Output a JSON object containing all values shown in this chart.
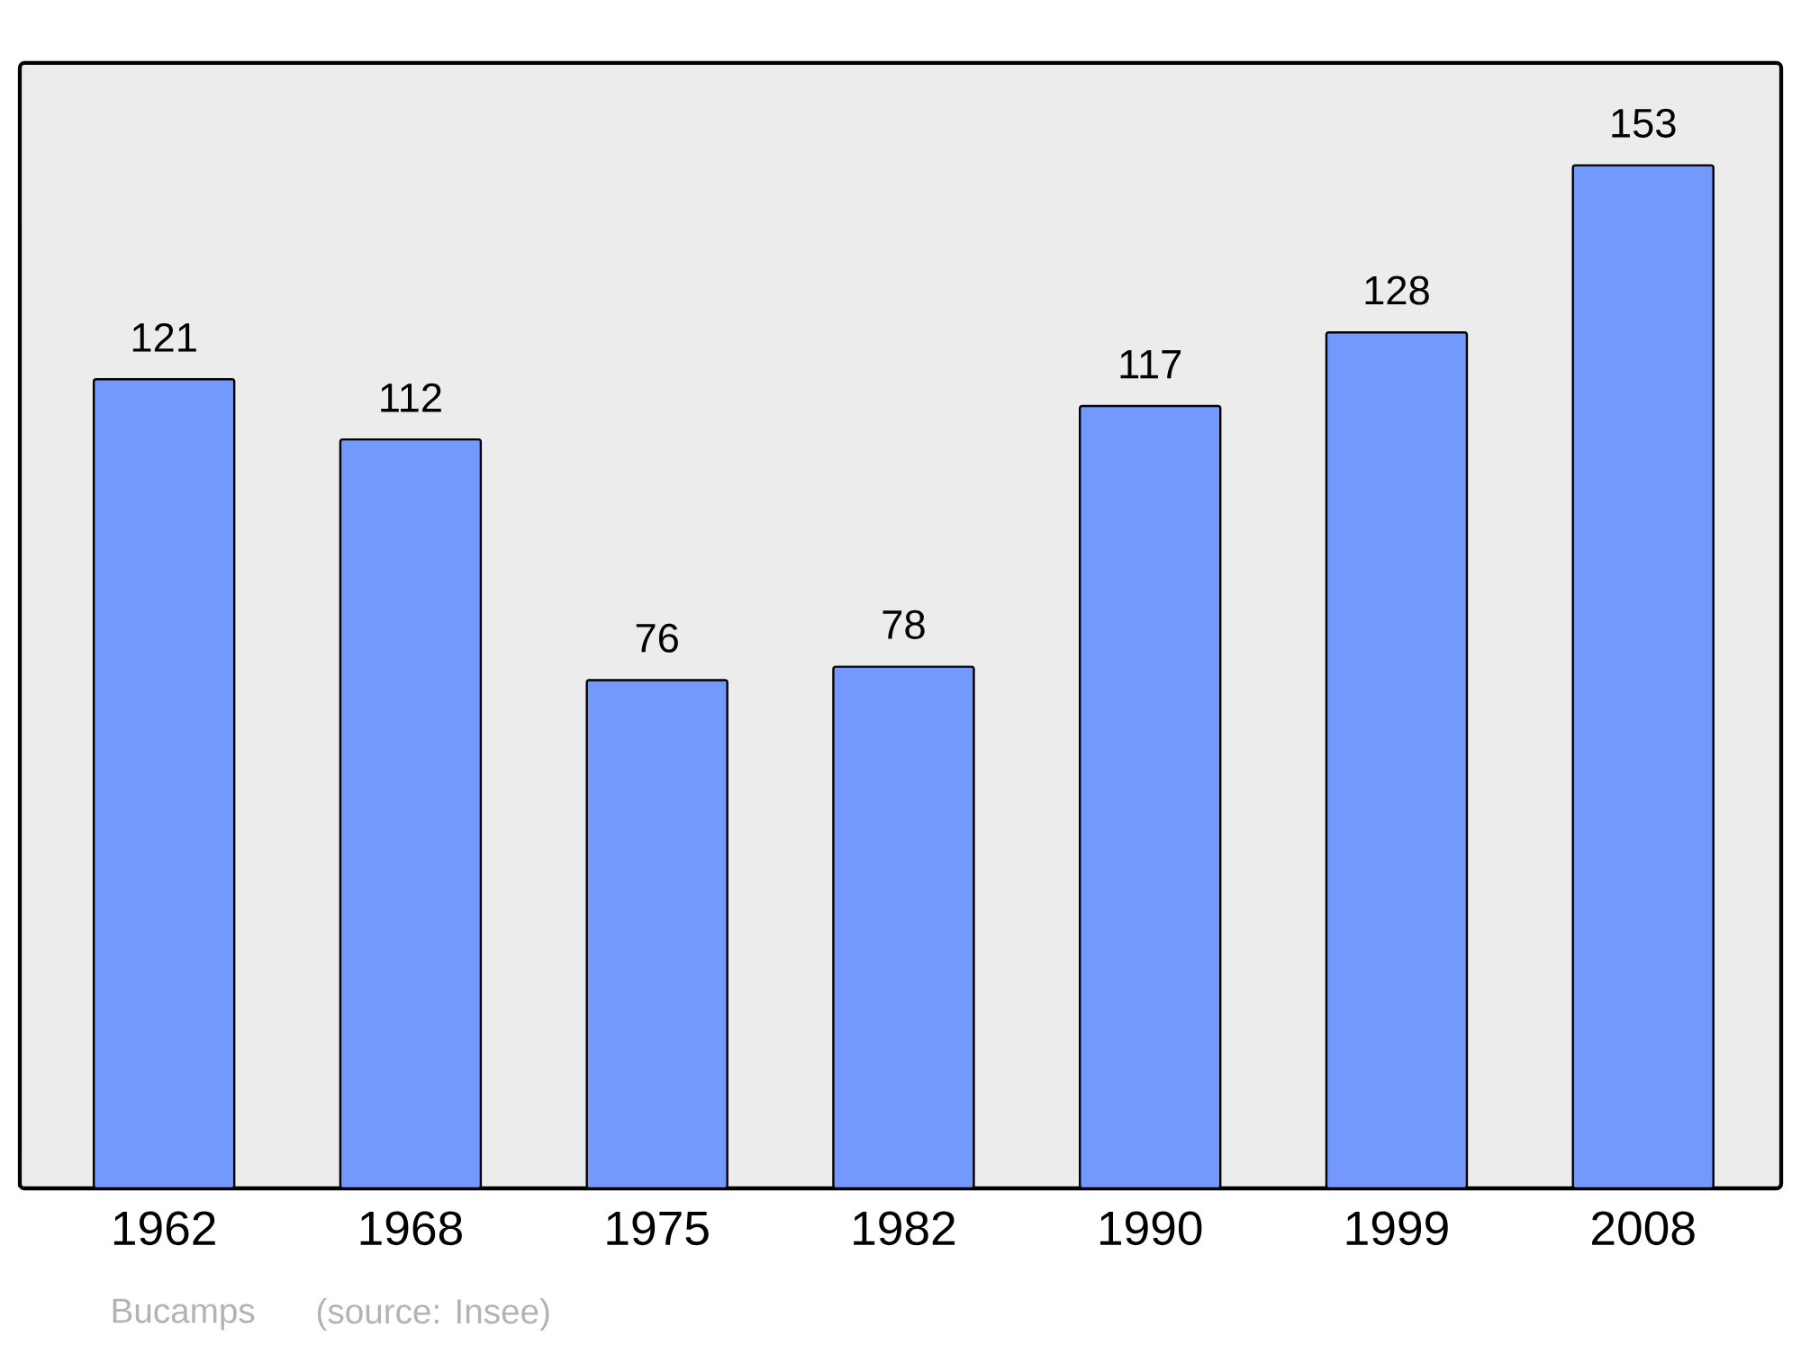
{
  "chart_data": {
    "type": "bar",
    "categories": [
      "1962",
      "1968",
      "1975",
      "1982",
      "1990",
      "1999",
      "2008"
    ],
    "values": [
      121,
      112,
      76,
      78,
      117,
      128,
      153
    ],
    "color": "#7399ff",
    "data_labels": true,
    "grid": false,
    "annotations": [
      "Bucamps",
      "(source: Insee)"
    ]
  }
}
